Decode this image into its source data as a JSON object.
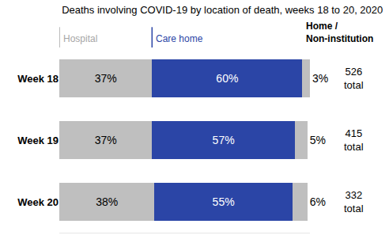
{
  "chart_data": {
    "type": "bar",
    "title": "Deaths involving COVID-19 by location of death, weeks 18 to 20, 2020",
    "orientation": "horizontal",
    "stacked": true,
    "data_labels": true,
    "tick_labels": "y",
    "categories": [
      "Week 18",
      "Week 19",
      "Week 20"
    ],
    "xlim": [
      0,
      100
    ],
    "series": [
      {
        "name": "Hospital",
        "color": "#bfbfbf",
        "values": [
          37,
          37,
          38
        ],
        "value_labels": [
          "37%",
          "37%",
          "38%"
        ]
      },
      {
        "name": "Care home",
        "color": "#2b45a6",
        "values": [
          60,
          57,
          55
        ],
        "value_labels": [
          "60%",
          "57%",
          "55%"
        ]
      },
      {
        "name": "Home / Non-institution",
        "color": "#bfbfbf",
        "values": [
          3,
          5,
          6
        ],
        "value_labels": [
          "3%",
          "5%",
          "6%"
        ]
      }
    ],
    "totals": [
      526,
      415,
      332
    ],
    "total_label": "total"
  }
}
